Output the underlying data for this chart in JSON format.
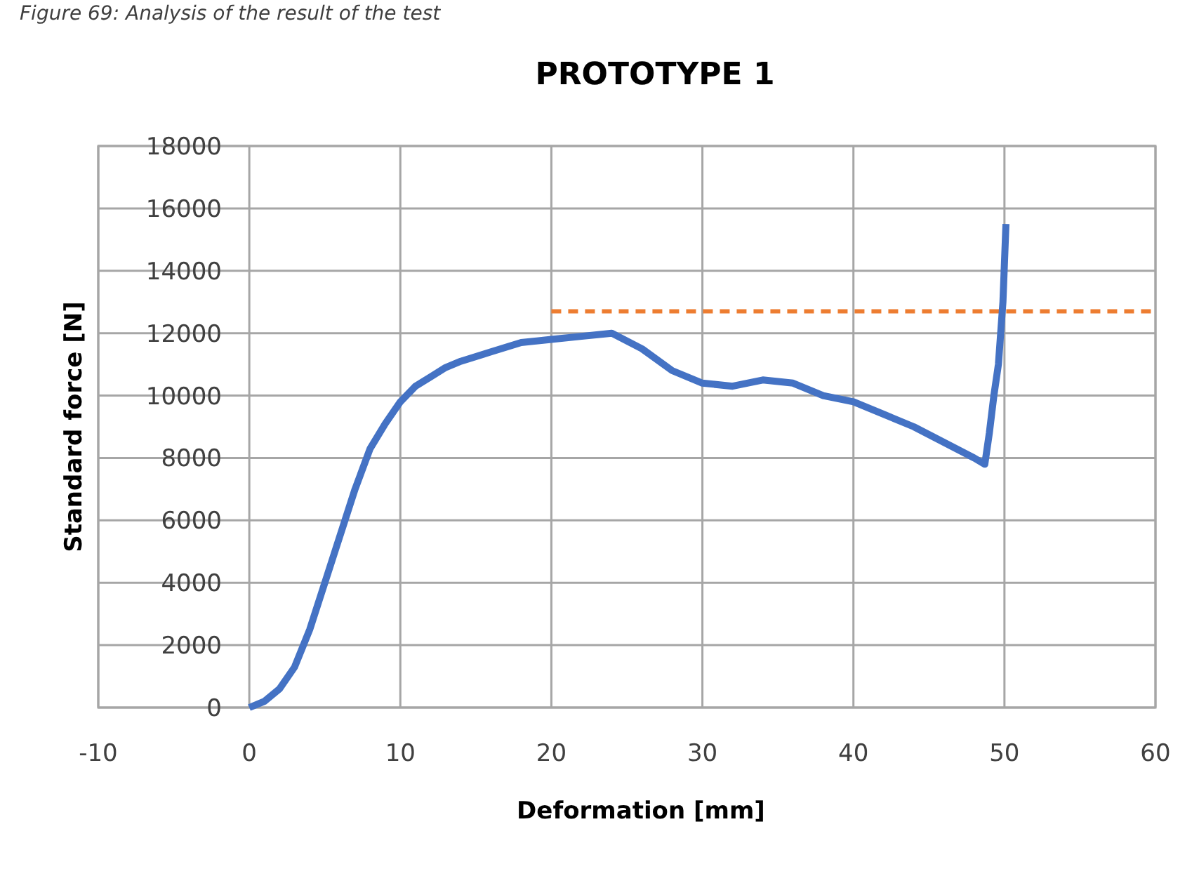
{
  "chart_data": {
    "type": "line",
    "title": "PROTOTYPE  1",
    "xlabel": "Deformation [mm]",
    "ylabel": "Standard force [N]",
    "annotations": [
      "Figure 69: Analysis of the result of the test"
    ],
    "xlim": [
      -10,
      60
    ],
    "xticks": [
      -10,
      0,
      10,
      20,
      30,
      40,
      50,
      60
    ],
    "ylim": [
      0,
      18000
    ],
    "yticks": [
      0,
      2000,
      4000,
      6000,
      8000,
      10000,
      12000,
      14000,
      16000,
      18000
    ],
    "grid": true,
    "series": [
      {
        "color": "#4472c4",
        "line_style": "solid",
        "x": [
          0,
          0.5,
          1,
          2,
          3,
          4,
          5,
          6,
          7,
          8,
          9,
          10,
          11,
          12,
          13,
          14,
          16,
          18,
          20,
          22,
          24,
          26,
          28,
          30,
          32,
          34,
          36,
          38,
          40,
          42,
          44,
          46,
          48,
          48.7,
          49,
          49.3,
          49.6,
          49.9,
          50.1
        ],
        "values": [
          0,
          100,
          200,
          600,
          1300,
          2500,
          4000,
          5500,
          7000,
          8300,
          9100,
          9800,
          10300,
          10600,
          10900,
          11100,
          11400,
          11700,
          11800,
          11900,
          12000,
          11500,
          10800,
          10400,
          10300,
          10500,
          10400,
          10000,
          9800,
          9400,
          9000,
          8500,
          8000,
          7800,
          8800,
          10000,
          11000,
          13000,
          15500
        ]
      },
      {
        "type": "line",
        "color": "#ed7d31",
        "line_style": "dashed",
        "x": [
          20,
          60
        ],
        "values": [
          12700,
          12700
        ]
      }
    ]
  }
}
